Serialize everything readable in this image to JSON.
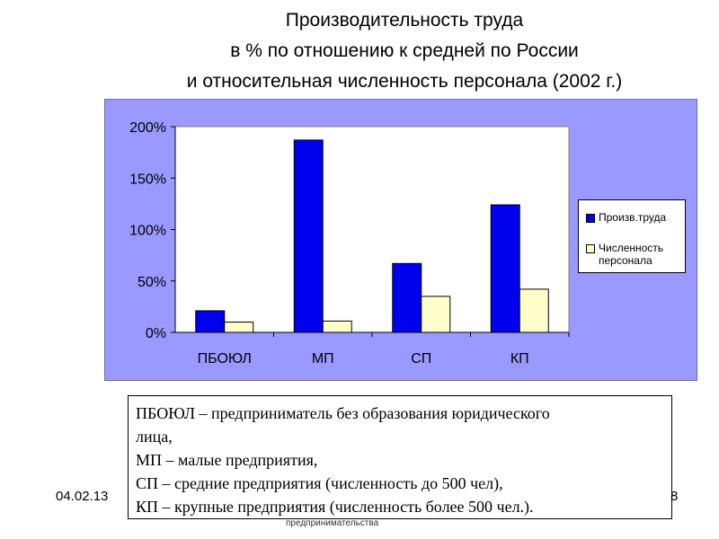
{
  "title_lines": [
    "Производительность труда",
    "в % по отношению к средней по России",
    "и относительная численность персонала (2002 г.)"
  ],
  "chart_data": {
    "type": "bar",
    "title": "",
    "categories": [
      "ПБОЮЛ",
      "МП",
      "СП",
      "КП"
    ],
    "series": [
      {
        "name": "Произв.труда",
        "values": [
          21,
          187,
          67,
          124
        ],
        "color": "#0000ee"
      },
      {
        "name": "Численность персонала",
        "values": [
          10,
          11,
          35,
          42
        ],
        "color": "#ffffcc"
      }
    ],
    "yticks": [
      "0%",
      "50%",
      "100%",
      "150%",
      "200%"
    ],
    "ylim": [
      0,
      200
    ],
    "plot_background": "#ffffff",
    "chart_background": "#9999ff",
    "legend_position": "right",
    "grid": false
  },
  "legend": [
    {
      "label": "Произв.труда"
    },
    {
      "label": "Численность\nперсонала"
    }
  ],
  "notes": [
    "ПБОЮЛ – предприниматель без образования юридического",
    "лица,",
    "МП – малые предприятия,",
    "СП – средние предприятия (численность до 500 чел),",
    "КП – крупные предприятия (численность более 500 чел.)."
  ],
  "footer": {
    "date": "04.02.13",
    "page": "8",
    "source": "предпринимательства"
  }
}
